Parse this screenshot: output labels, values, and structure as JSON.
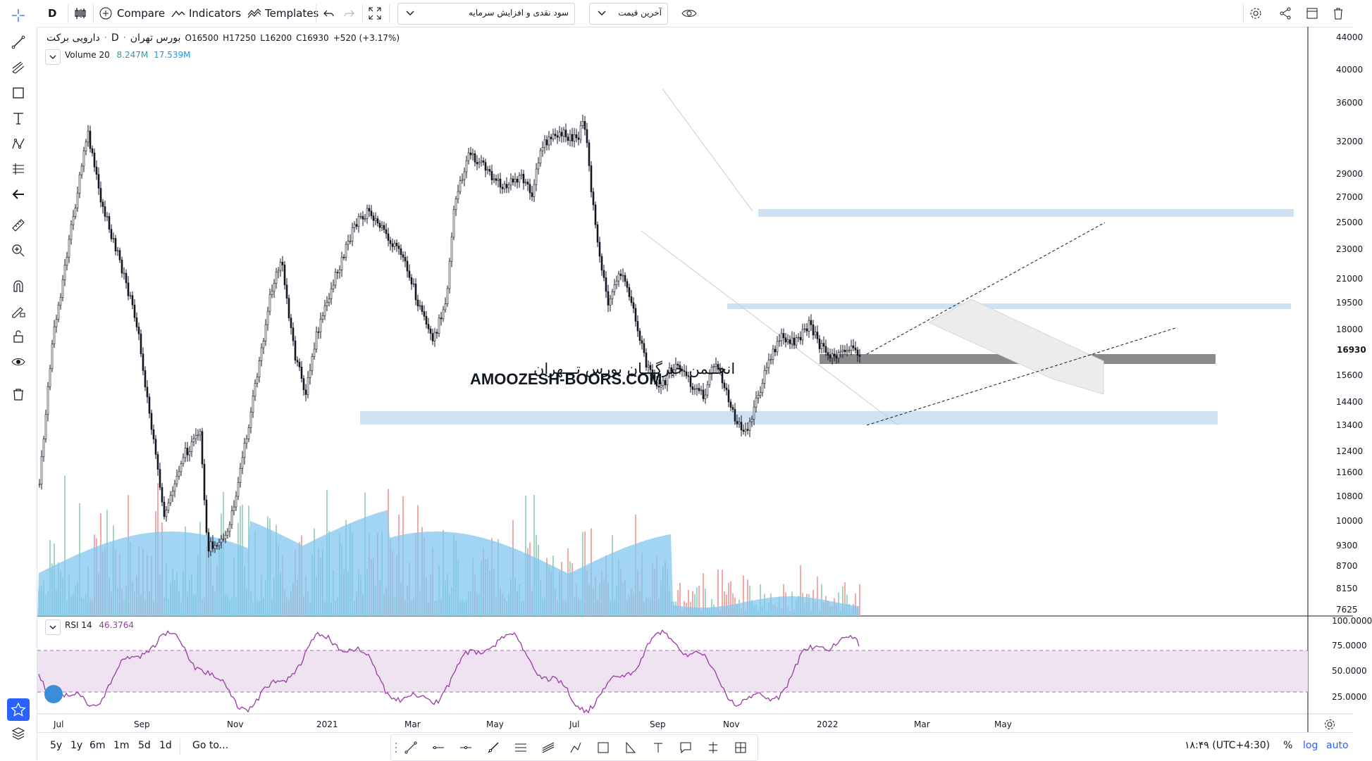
{
  "toolbar": {
    "interval": "D",
    "compare_label": "Compare",
    "indicators_label": "Indicators",
    "templates_label": "Templates",
    "dropdown1_value": "سود نقدی و افزایش سرمایه",
    "dropdown2_value": "آخرین قیمت"
  },
  "symbol": {
    "name": "دارویی برکت",
    "exchange": "بورس تهران",
    "interval": "D",
    "open": "O16500",
    "high": "H17250",
    "low": "L16200",
    "close": "C16930",
    "change": "+520 (+3.17%)"
  },
  "volume": {
    "label": "Volume 20",
    "value1": "8.247M",
    "value2": "17.539M"
  },
  "rsi": {
    "label": "RSI 14",
    "value": "46.3764"
  },
  "watermark": {
    "line1": "انجــمن خبرگـــان بورس تـــهران",
    "line2": "AMOOZESH-BOORS.COM"
  },
  "price_axis": [
    "44000",
    "40000",
    "36000",
    "32000",
    "29000",
    "27000",
    "25000",
    "23000",
    "21000",
    "19500",
    "18000",
    "16930",
    "15600",
    "14400",
    "13400",
    "12400",
    "11600",
    "10800",
    "10000",
    "9300",
    "8700",
    "8150",
    "7625"
  ],
  "current_price": "16930",
  "rsi_axis": [
    "100.0000",
    "75.0000",
    "50.0000",
    "25.0000"
  ],
  "time_axis": [
    "Jul",
    "Sep",
    "Nov",
    "2021",
    "Mar",
    "May",
    "Jul",
    "Sep",
    "Nov",
    "2022",
    "Mar",
    "May"
  ],
  "bottom": {
    "ranges": [
      "5y",
      "1y",
      "6m",
      "1m",
      "5d",
      "1d"
    ],
    "goto_label": "Go to...",
    "clock": "۱۸:۴۹ (UTC+4:30)",
    "percent": "%",
    "log": "log",
    "auto": "auto"
  },
  "colors": {
    "up_volume": "#a5d6c4",
    "down_volume": "#f4a9a9",
    "volume_ma": "#81c7ef",
    "rsi_line": "#9b3aa6",
    "rsi_band": "#efe3f2",
    "zone": "#cfe2f3",
    "accent": "#2962ff"
  }
}
